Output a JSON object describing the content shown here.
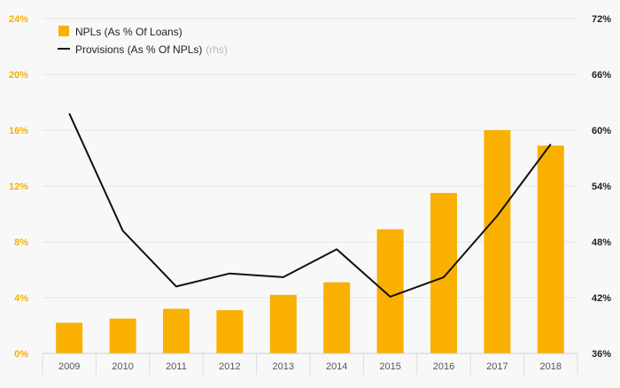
{
  "chart_data": {
    "type": "bar",
    "categories": [
      "2009",
      "2010",
      "2011",
      "2012",
      "2013",
      "2014",
      "2015",
      "2016",
      "2017",
      "2018"
    ],
    "series": [
      {
        "name": "NPLs (As % Of Loans)",
        "type": "bar",
        "axis": "left",
        "values": [
          2.2,
          2.5,
          3.2,
          3.1,
          4.2,
          5.1,
          8.9,
          11.5,
          16.0,
          14.9
        ]
      },
      {
        "name": "Provisions (As % Of NPLs)",
        "type": "line",
        "axis": "right",
        "values": [
          61.8,
          49.2,
          43.2,
          44.6,
          44.2,
          47.2,
          42.1,
          44.2,
          50.8,
          58.5
        ]
      }
    ],
    "legend": {
      "bar_label": "NPLs (As % Of Loans)",
      "line_label": "Provisions (As % Of NPLs)",
      "line_suffix": "(rhs)",
      "placement": "top-left"
    },
    "y_left": {
      "lim": [
        0,
        24
      ],
      "ticks": [
        0,
        4,
        8,
        12,
        16,
        20,
        24
      ],
      "tick_labels": [
        "0%",
        "4%",
        "8%",
        "12%",
        "16%",
        "20%",
        "24%"
      ]
    },
    "y_right": {
      "lim": [
        36,
        72
      ],
      "ticks": [
        36,
        42,
        48,
        54,
        60,
        66,
        72
      ],
      "tick_labels": [
        "36%",
        "42%",
        "48%",
        "54%",
        "60%",
        "66%",
        "72%"
      ]
    },
    "grid": true,
    "colors": {
      "bar": "#f9b000",
      "line": "#111111",
      "left_axis_text": "#f9b000",
      "right_axis_text": "#222222",
      "grid": "#e4e4e4",
      "background": "#f8f8f8"
    }
  }
}
